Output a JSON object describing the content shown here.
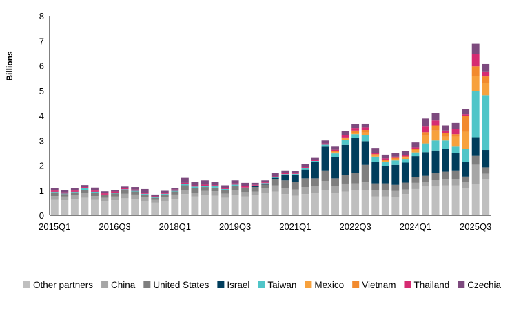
{
  "chart_data": {
    "type": "bar",
    "stacked": true,
    "title": "",
    "xlabel": "",
    "ylabel": "Billions",
    "ylim": [
      0,
      8
    ],
    "yticks": [
      "0",
      "1",
      "2",
      "3",
      "4",
      "5",
      "6",
      "7",
      "8"
    ],
    "grid": false,
    "legend_position": "bottom",
    "categories": [
      "2015Q1",
      "2015Q2",
      "2015Q3",
      "2015Q4",
      "2016Q1",
      "2016Q2",
      "2016Q3",
      "2016Q4",
      "2017Q1",
      "2017Q2",
      "2017Q3",
      "2017Q4",
      "2018Q1",
      "2018Q2",
      "2018Q3",
      "2018Q4",
      "2019Q1",
      "2019Q2",
      "2019Q3",
      "2019Q4",
      "2020Q1",
      "2020Q2",
      "2020Q3",
      "2020Q4",
      "2021Q1",
      "2021Q2",
      "2021Q3",
      "2021Q4",
      "2022Q1",
      "2022Q2",
      "2022Q3",
      "2022Q4",
      "2023Q1",
      "2023Q2",
      "2023Q3",
      "2023Q4",
      "2024Q1",
      "2024Q2",
      "2024Q3",
      "2024Q4",
      "2025Q1",
      "2025Q2",
      "2025Q3",
      "2025Q4"
    ],
    "xtick_labels": [
      {
        "index": 0,
        "label": "2015Q1"
      },
      {
        "index": 6,
        "label": "2016Q3"
      },
      {
        "index": 12,
        "label": "2018Q1"
      },
      {
        "index": 18,
        "label": "2019Q3"
      },
      {
        "index": 24,
        "label": "2021Q1"
      },
      {
        "index": 30,
        "label": "2022Q3"
      },
      {
        "index": 36,
        "label": "2024Q1"
      },
      {
        "index": 42,
        "label": "2025Q3"
      }
    ],
    "series": [
      {
        "name": "Other partners",
        "color": "#bfbfbf",
        "values": [
          0.62,
          0.6,
          0.65,
          0.7,
          0.62,
          0.55,
          0.6,
          0.68,
          0.65,
          0.58,
          0.5,
          0.58,
          0.65,
          0.85,
          0.75,
          0.8,
          0.78,
          0.7,
          0.82,
          0.75,
          0.8,
          0.9,
          0.95,
          0.85,
          0.78,
          0.85,
          0.88,
          1.0,
          0.88,
          0.95,
          1.0,
          1.0,
          0.75,
          0.75,
          0.72,
          0.85,
          1.05,
          1.15,
          1.15,
          1.2,
          1.2,
          1.1,
          1.25,
          1.45
        ]
      },
      {
        "name": "China",
        "color": "#a6a6a6",
        "values": [
          0.15,
          0.15,
          0.15,
          0.18,
          0.15,
          0.15,
          0.15,
          0.18,
          0.18,
          0.15,
          0.12,
          0.15,
          0.18,
          0.15,
          0.15,
          0.18,
          0.18,
          0.17,
          0.18,
          0.18,
          0.15,
          0.18,
          0.25,
          0.25,
          0.25,
          0.28,
          0.3,
          0.38,
          0.3,
          0.32,
          0.28,
          0.32,
          0.25,
          0.25,
          0.25,
          0.18,
          0.25,
          0.18,
          0.25,
          0.25,
          0.25,
          0.25,
          0.78,
          0.22
        ]
      },
      {
        "name": "United States",
        "color": "#7f7f7f",
        "values": [
          0.15,
          0.1,
          0.12,
          0.12,
          0.12,
          0.1,
          0.12,
          0.15,
          0.12,
          0.1,
          0.08,
          0.1,
          0.12,
          0.2,
          0.2,
          0.15,
          0.15,
          0.15,
          0.18,
          0.15,
          0.18,
          0.15,
          0.25,
          0.3,
          0.3,
          0.35,
          0.3,
          0.42,
          0.3,
          0.35,
          0.42,
          0.7,
          0.28,
          0.28,
          0.25,
          0.28,
          0.22,
          0.25,
          0.3,
          0.3,
          0.35,
          0.2,
          0.35,
          0.25
        ]
      },
      {
        "name": "Israel",
        "color": "#003d5c",
        "values": [
          0,
          0,
          0,
          0,
          0,
          0,
          0,
          0,
          0,
          0,
          0,
          0,
          0,
          0,
          0,
          0,
          0,
          0,
          0,
          0,
          0.03,
          0.03,
          0.05,
          0.2,
          0.3,
          0.35,
          0.65,
          0.95,
          0.85,
          1.2,
          1.4,
          0.95,
          0.85,
          0.7,
          0.8,
          0.8,
          0.85,
          0.95,
          0.9,
          0.9,
          0.7,
          0.6,
          0.75,
          0.7
        ]
      },
      {
        "name": "Taiwan",
        "color": "#50c5c8",
        "values": [
          0.02,
          0.02,
          0.02,
          0.08,
          0.05,
          0.03,
          0.03,
          0.03,
          0.03,
          0.03,
          0.03,
          0.03,
          0.03,
          0.05,
          0.05,
          0.05,
          0.05,
          0.03,
          0.05,
          0.03,
          0.03,
          0.03,
          0.03,
          0.05,
          0.03,
          0.05,
          0.05,
          0.08,
          0.15,
          0.2,
          0.15,
          0.25,
          0.22,
          0.15,
          0.18,
          0.15,
          0.15,
          0.35,
          0.4,
          0.35,
          0.25,
          0.5,
          1.85,
          2.2
        ]
      },
      {
        "name": "Mexico",
        "color": "#f7a13d",
        "values": [
          0,
          0,
          0,
          0,
          0,
          0,
          0,
          0,
          0,
          0,
          0,
          0,
          0,
          0,
          0,
          0,
          0,
          0,
          0,
          0,
          0,
          0,
          0,
          0,
          0,
          0,
          0,
          0,
          0.05,
          0.05,
          0.05,
          0.1,
          0.05,
          0.05,
          0.05,
          0.05,
          0.1,
          0.3,
          0.4,
          0.15,
          0.4,
          0.7,
          0.6,
          0.5
        ]
      },
      {
        "name": "Vietnam",
        "color": "#f28a2e",
        "values": [
          0,
          0,
          0,
          0,
          0,
          0,
          0,
          0,
          0,
          0,
          0,
          0,
          0,
          0,
          0,
          0,
          0,
          0,
          0,
          0,
          0,
          0,
          0,
          0,
          0,
          0,
          0,
          0,
          0.05,
          0.05,
          0.1,
          0.1,
          0.05,
          0.05,
          0.05,
          0.05,
          0.05,
          0.15,
          0.2,
          0.15,
          0.1,
          0.65,
          0.4,
          0.25
        ]
      },
      {
        "name": "Thailand",
        "color": "#d62b72",
        "values": [
          0.05,
          0.05,
          0.05,
          0.05,
          0.05,
          0.05,
          0.05,
          0.05,
          0.05,
          0.05,
          0.03,
          0.05,
          0.05,
          0.05,
          0.05,
          0.05,
          0.05,
          0.05,
          0.05,
          0.05,
          0.03,
          0.03,
          0.03,
          0.05,
          0.05,
          0.05,
          0.05,
          0.05,
          0.05,
          0.1,
          0.1,
          0.1,
          0.05,
          0.05,
          0.05,
          0.05,
          0.05,
          0.25,
          0.2,
          0.1,
          0.2,
          0.05,
          0.5,
          0.2
        ]
      },
      {
        "name": "Czechia",
        "color": "#7d4a7e",
        "values": [
          0.1,
          0.08,
          0.1,
          0.08,
          0.12,
          0.08,
          0.05,
          0.06,
          0.1,
          0.14,
          0.07,
          0.07,
          0.07,
          0.2,
          0.15,
          0.17,
          0.12,
          0.1,
          0.12,
          0.14,
          0.08,
          0.08,
          0.14,
          0.1,
          0.08,
          0.12,
          0.07,
          0.12,
          0.12,
          0.15,
          0.15,
          0.15,
          0.2,
          0.15,
          0.15,
          0.17,
          0.2,
          0.3,
          0.3,
          0.2,
          0.25,
          0.2,
          0.4,
          0.3
        ]
      }
    ]
  }
}
